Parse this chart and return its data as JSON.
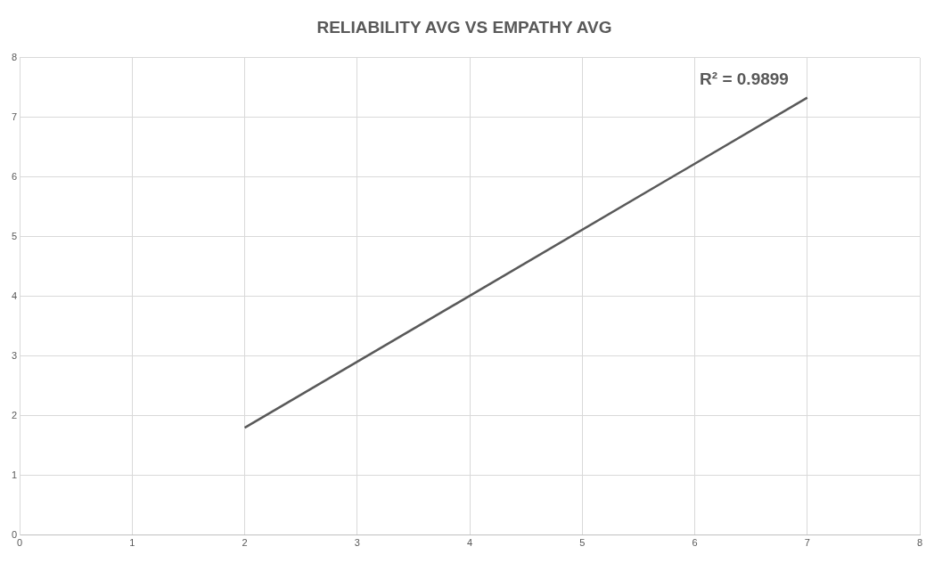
{
  "chart_data": {
    "type": "line",
    "title": "RELIABILITY AVG VS EMPATHY AVG",
    "series": [
      {
        "color": "#595959",
        "x": [
          2,
          7
        ],
        "values": [
          1.8,
          7.33
        ]
      }
    ],
    "xlim": [
      0,
      8
    ],
    "xticks": [
      0,
      1,
      2,
      3,
      4,
      5,
      6,
      7,
      8
    ],
    "ylim": [
      0,
      8
    ],
    "yticks": [
      0,
      1,
      2,
      3,
      4,
      5,
      6,
      7,
      8
    ],
    "grid": true,
    "legend": false,
    "marker": "none",
    "line_style": "solid",
    "annotations": [
      "R² = 0.9899"
    ]
  }
}
